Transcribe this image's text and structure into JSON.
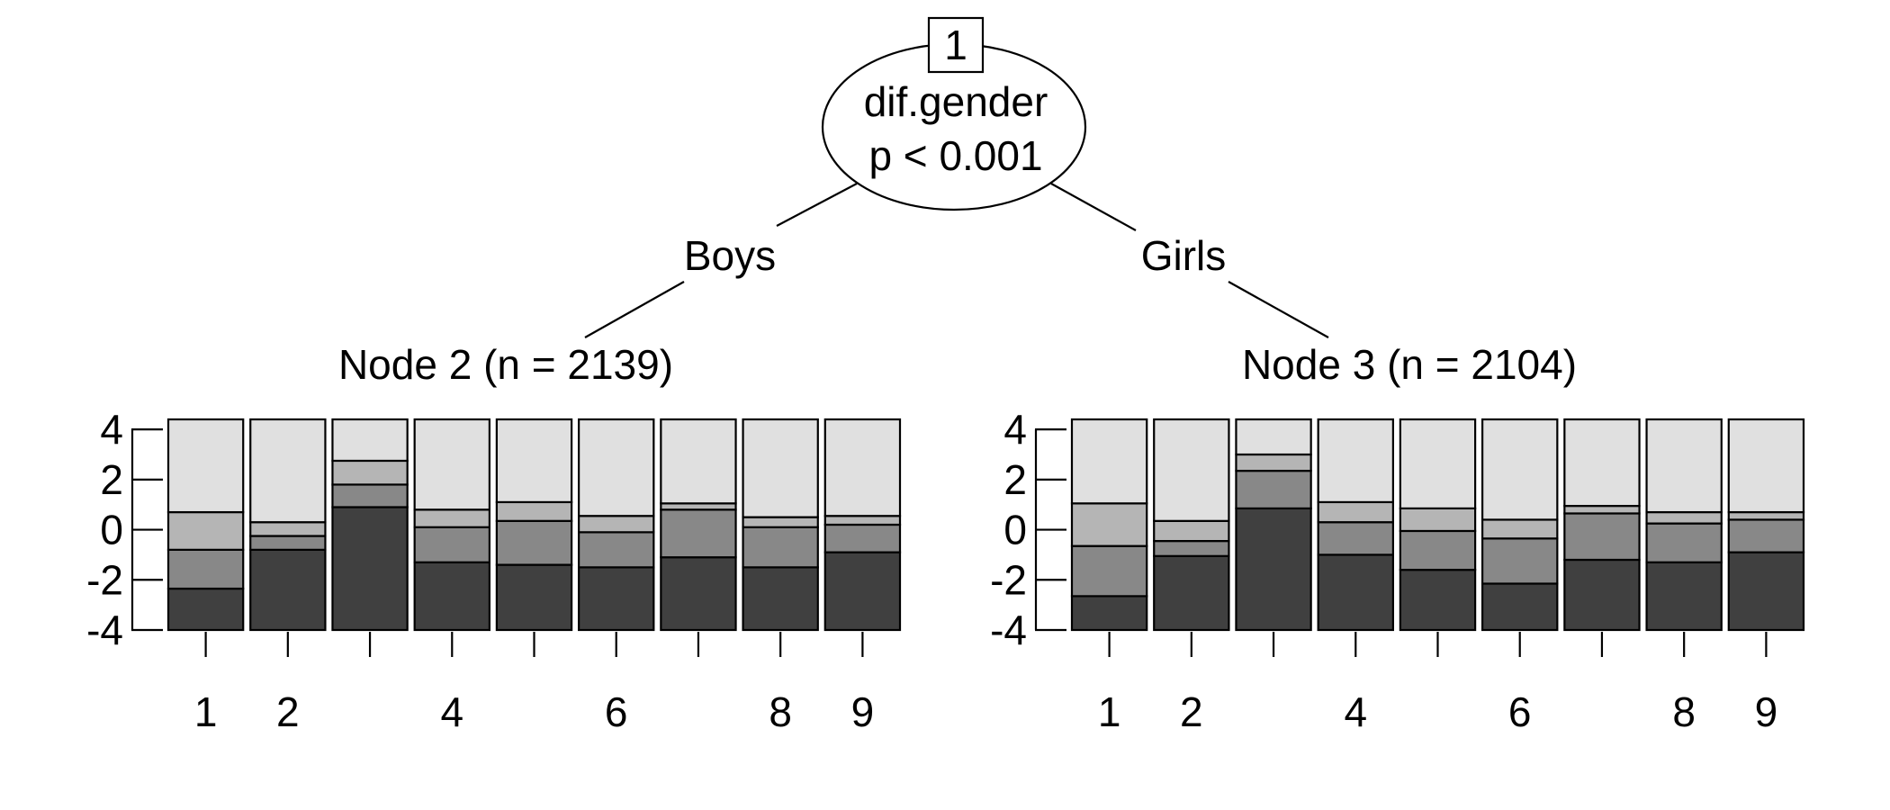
{
  "root": {
    "id": "1",
    "variable": "dif.gender",
    "pvalue": "p < 0.001"
  },
  "edges": {
    "left": "Boys",
    "right": "Girls"
  },
  "nodes": [
    {
      "title": "Node 2 (n = 2139)"
    },
    {
      "title": "Node 3 (n = 2104)"
    }
  ],
  "colors": {
    "seg1": "#404040",
    "seg2": "#888888",
    "seg3": "#b5b5b5",
    "seg4": "#e0e0e0",
    "stroke": "#000000"
  },
  "chart_data": [
    {
      "type": "bar",
      "stacked": true,
      "title": "Node 2 (n = 2139)",
      "ylim": [
        -4,
        4.4
      ],
      "yticks": [
        "4",
        "2",
        "0",
        "-2",
        "-4"
      ],
      "xtick_labels": [
        "1",
        "2",
        "",
        "4",
        "",
        "6",
        "",
        "8",
        "9"
      ],
      "bars": [
        [
          -2.35,
          -0.8,
          0.7,
          4.4
        ],
        [
          -0.8,
          -0.25,
          0.3,
          4.4
        ],
        [
          0.9,
          1.8,
          2.75,
          4.4
        ],
        [
          -1.3,
          0.1,
          0.8,
          4.4
        ],
        [
          -1.4,
          0.35,
          1.1,
          4.4
        ],
        [
          -1.5,
          -0.1,
          0.55,
          4.4
        ],
        [
          -1.1,
          0.8,
          1.05,
          4.4
        ],
        [
          -1.5,
          0.1,
          0.5,
          4.4
        ],
        [
          -0.9,
          0.2,
          0.55,
          4.4
        ]
      ]
    },
    {
      "type": "bar",
      "stacked": true,
      "title": "Node 3 (n = 2104)",
      "ylim": [
        -4,
        4.4
      ],
      "yticks": [
        "4",
        "2",
        "0",
        "-2",
        "-4"
      ],
      "xtick_labels": [
        "1",
        "2",
        "",
        "4",
        "",
        "6",
        "",
        "8",
        "9"
      ],
      "bars": [
        [
          -2.65,
          -0.65,
          1.05,
          4.4
        ],
        [
          -1.05,
          -0.45,
          0.35,
          4.4
        ],
        [
          0.85,
          2.35,
          3.0,
          4.4
        ],
        [
          -1.0,
          0.3,
          1.1,
          4.4
        ],
        [
          -1.6,
          -0.05,
          0.85,
          4.4
        ],
        [
          -2.15,
          -0.35,
          0.4,
          4.4
        ],
        [
          -1.2,
          0.65,
          0.95,
          4.4
        ],
        [
          -1.3,
          0.25,
          0.7,
          4.4
        ],
        [
          -0.9,
          0.4,
          0.7,
          4.4
        ]
      ]
    }
  ]
}
